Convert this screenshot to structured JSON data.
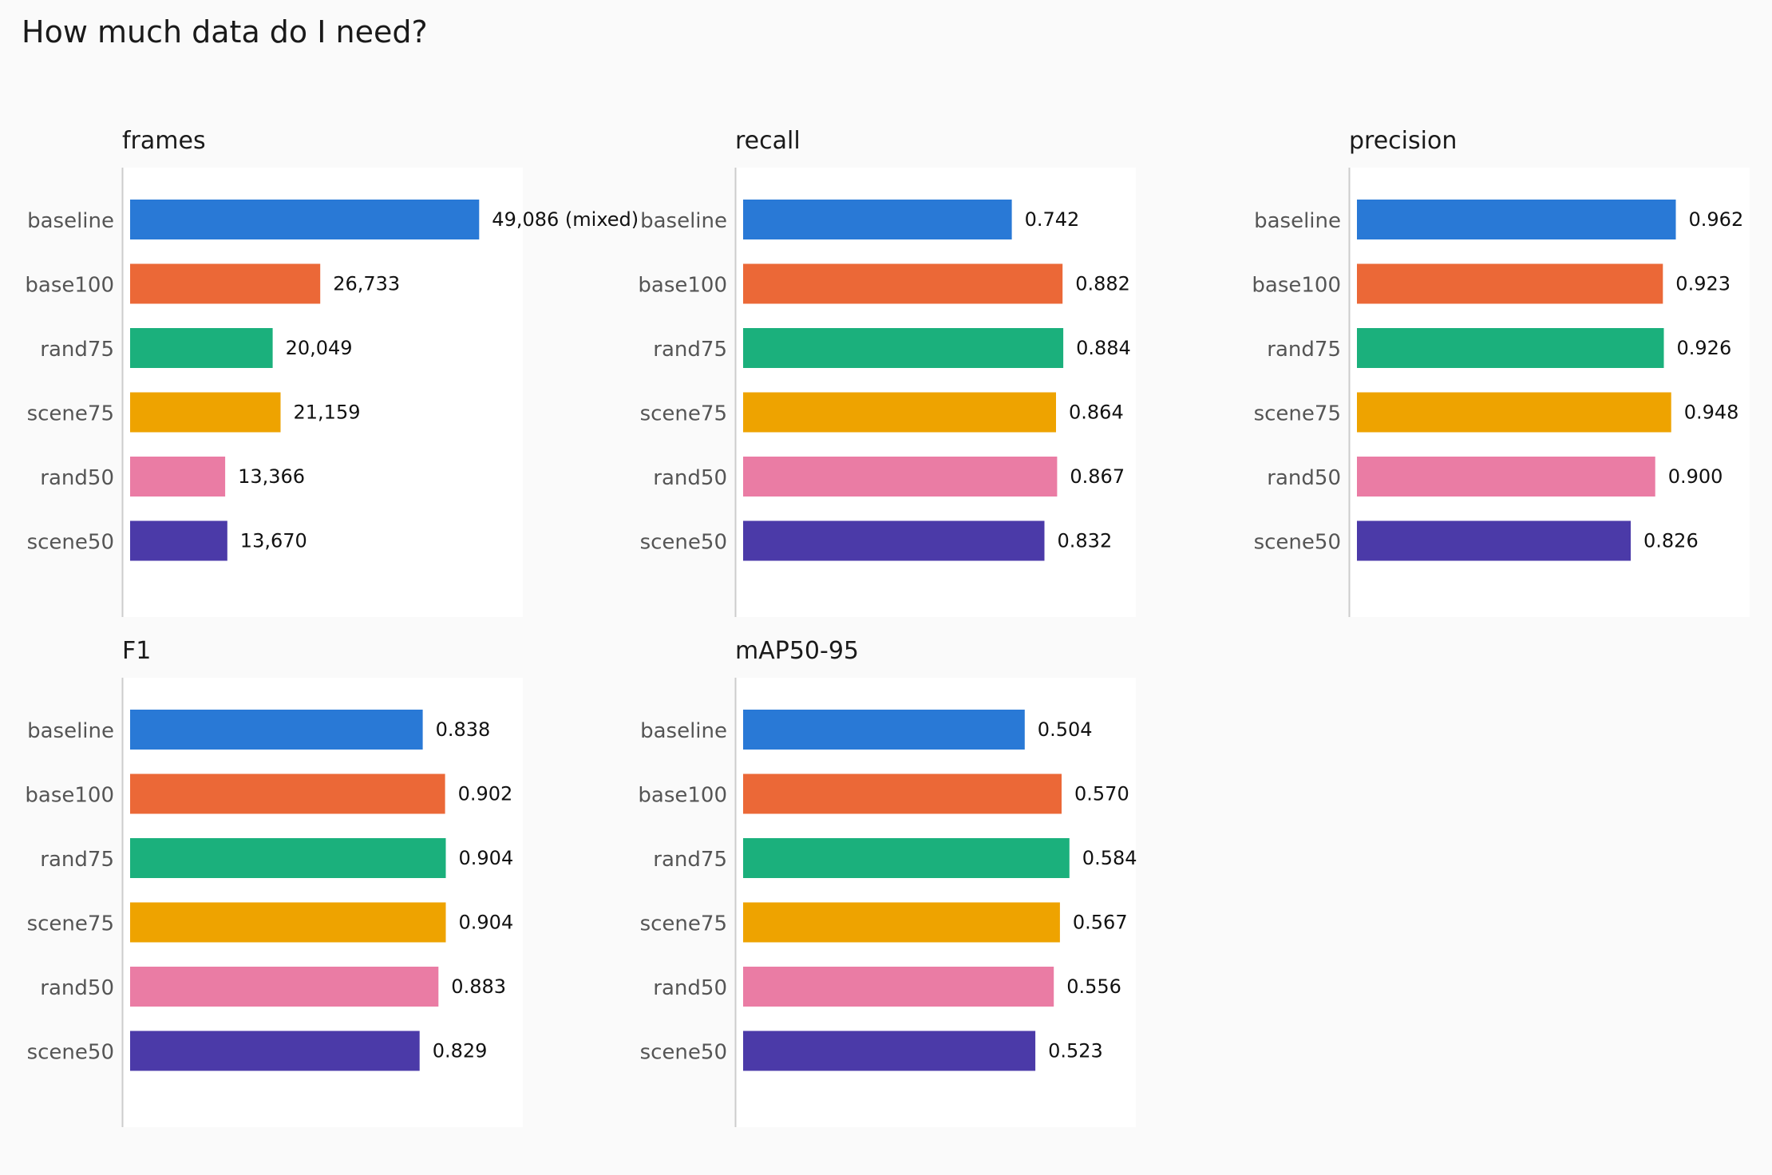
{
  "title": "How much data do I need?",
  "colors": [
    "#2979d6",
    "#eb6837",
    "#1bb07c",
    "#eea300",
    "#ea7ca4",
    "#4b3aa8"
  ],
  "chart_data": [
    {
      "type": "bar",
      "title": "frames",
      "orientation": "horizontal",
      "categories": [
        "baseline",
        "base100",
        "rand75",
        "scene75",
        "rand50",
        "scene50"
      ],
      "values": [
        49086,
        26733,
        20049,
        21159,
        13366,
        13670
      ],
      "labels": [
        "49,086 (mixed)",
        "26,733",
        "20,049",
        "21,159",
        "13,366",
        "13,670"
      ],
      "xlim": [
        0,
        55000
      ]
    },
    {
      "type": "bar",
      "title": "recall",
      "orientation": "horizontal",
      "categories": [
        "baseline",
        "base100",
        "rand75",
        "scene75",
        "rand50",
        "scene50"
      ],
      "values": [
        0.742,
        0.882,
        0.884,
        0.864,
        0.867,
        0.832
      ],
      "labels": [
        "0.742",
        "0.882",
        "0.884",
        "0.864",
        "0.867",
        "0.832"
      ],
      "xlim": [
        0,
        1.08
      ]
    },
    {
      "type": "bar",
      "title": "precision",
      "orientation": "horizontal",
      "categories": [
        "baseline",
        "base100",
        "rand75",
        "scene75",
        "rand50",
        "scene50"
      ],
      "values": [
        0.962,
        0.923,
        0.926,
        0.948,
        0.9,
        0.826
      ],
      "labels": [
        "0.962",
        "0.923",
        "0.926",
        "0.948",
        "0.900",
        "0.826"
      ],
      "xlim": [
        0,
        1.18
      ]
    },
    {
      "type": "bar",
      "title": "F1",
      "orientation": "horizontal",
      "categories": [
        "baseline",
        "base100",
        "rand75",
        "scene75",
        "rand50",
        "scene50"
      ],
      "values": [
        0.838,
        0.902,
        0.904,
        0.904,
        0.883,
        0.829
      ],
      "labels": [
        "0.838",
        "0.902",
        "0.904",
        "0.904",
        "0.883",
        "0.829"
      ],
      "xlim": [
        0,
        1.12
      ]
    },
    {
      "type": "bar",
      "title": "mAP50-95",
      "orientation": "horizontal",
      "categories": [
        "baseline",
        "base100",
        "rand75",
        "scene75",
        "rand50",
        "scene50"
      ],
      "values": [
        0.504,
        0.57,
        0.584,
        0.567,
        0.556,
        0.523
      ],
      "labels": [
        "0.504",
        "0.570",
        "0.584",
        "0.567",
        "0.556",
        "0.523"
      ],
      "xlim": [
        0,
        0.7
      ]
    }
  ]
}
